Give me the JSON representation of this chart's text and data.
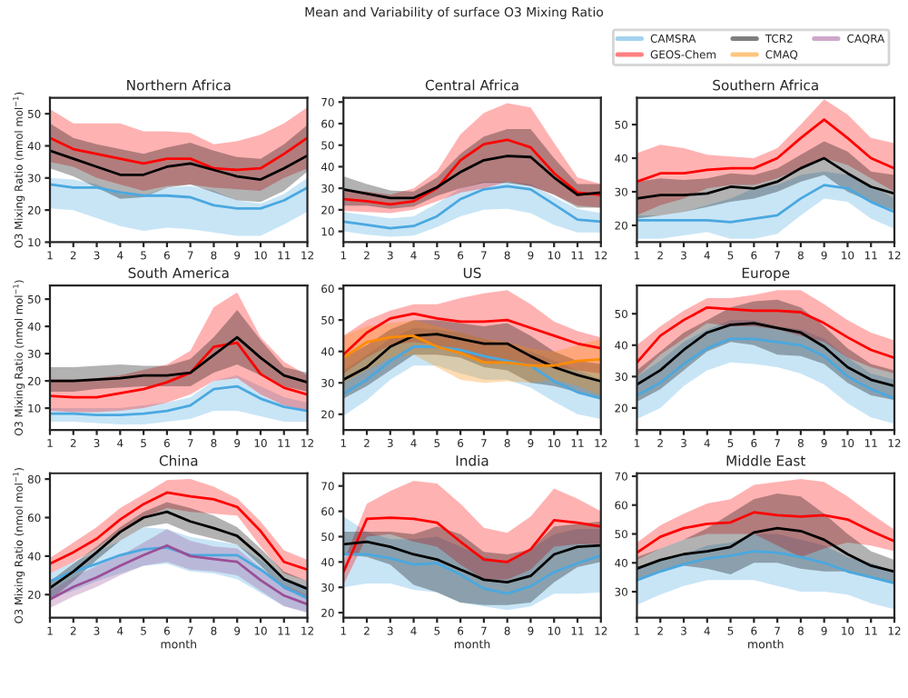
{
  "chart_data": [
    {
      "type": "line",
      "title": "Northern Africa",
      "legend": "top right",
      "ylabel": "O3 Mixing Ratio (nmol mol$^{−1}$)",
      "annotations": [
        "Mean and Variability of surface O3 Mixing Ratio"
      ],
      "x": [
        1,
        2,
        3,
        4,
        5,
        6,
        7,
        8,
        9,
        10,
        11,
        12
      ],
      "xlim": [
        1,
        12
      ],
      "xticks": [
        1,
        2,
        3,
        4,
        5,
        6,
        7,
        8,
        9,
        10,
        11,
        12
      ],
      "ylim": [
        10,
        55
      ],
      "yticks": [
        10,
        20,
        30,
        40,
        50
      ],
      "series": [
        {
          "name": "CAMSRA",
          "color": "#4aa8e0",
          "values": [
            28,
            27,
            27,
            25.5,
            24.5,
            24.5,
            24,
            21.5,
            20.5,
            20.5,
            23,
            27
          ],
          "lower": [
            20.5,
            20,
            17.5,
            15,
            13.5,
            14.5,
            14,
            13,
            12,
            12,
            15.5,
            19.5
          ],
          "upper": [
            30,
            29.5,
            28,
            25,
            24.5,
            27,
            27.5,
            26,
            23,
            22,
            25,
            30
          ]
        },
        {
          "name": "GEOS-Chem",
          "color": "#ff0000",
          "values": [
            42.5,
            39,
            37.5,
            36,
            34.5,
            36,
            36,
            33,
            32.5,
            33,
            37.5,
            42.5
          ],
          "lower": [
            35,
            33.5,
            30,
            28,
            26,
            27.5,
            28,
            27,
            26.5,
            26,
            30,
            33
          ],
          "upper": [
            51.5,
            47,
            47,
            47,
            44.5,
            44.5,
            44,
            40.5,
            41.5,
            43.5,
            47,
            52
          ]
        },
        {
          "name": "TCR2",
          "color": "#000000",
          "values": [
            38.5,
            36,
            33.5,
            31,
            31,
            33.5,
            34.5,
            32.5,
            30.5,
            29.5,
            33,
            37
          ],
          "lower": [
            33,
            30.5,
            27,
            23.5,
            24,
            27,
            28,
            25.5,
            23,
            22.5,
            26,
            32
          ],
          "upper": [
            47,
            42.5,
            40.5,
            39,
            37.5,
            39.5,
            41,
            38.5,
            36.5,
            36,
            40.5,
            46.5
          ]
        }
      ]
    },
    {
      "type": "line",
      "title": "Central Africa",
      "x": [
        1,
        2,
        3,
        4,
        5,
        6,
        7,
        8,
        9,
        10,
        11,
        12
      ],
      "xlim": [
        1,
        12
      ],
      "xticks": [
        1,
        2,
        3,
        4,
        5,
        6,
        7,
        8,
        9,
        10,
        11,
        12
      ],
      "ylim": [
        5,
        72
      ],
      "yticks": [
        10,
        20,
        30,
        40,
        50,
        60,
        70
      ],
      "series": [
        {
          "name": "CAMSRA",
          "color": "#4aa8e0",
          "values": [
            14.5,
            13,
            11.5,
            12.5,
            17,
            25,
            29.5,
            31,
            29.5,
            22.5,
            15.5,
            14.5
          ],
          "lower": [
            10,
            8.5,
            7.5,
            8,
            12,
            17,
            20,
            20.5,
            18.5,
            13,
            9.5,
            9.5
          ],
          "upper": [
            19,
            17.5,
            16,
            17,
            23,
            30,
            33,
            33,
            32,
            26,
            20.5,
            18.5
          ]
        },
        {
          "name": "GEOS-Chem",
          "color": "#ff0000",
          "values": [
            25,
            24,
            22.5,
            24,
            30,
            43,
            50.5,
            52.5,
            49,
            37,
            28,
            27
          ],
          "lower": [
            19.5,
            19,
            18.5,
            20,
            24,
            28,
            30,
            33,
            31,
            27,
            22,
            21
          ],
          "upper": [
            29,
            28.5,
            27,
            30,
            38,
            55,
            65,
            69.5,
            67.5,
            51,
            35,
            32
          ]
        },
        {
          "name": "TCR2",
          "color": "#000000",
          "values": [
            29.5,
            27.5,
            25.5,
            25.5,
            30.5,
            37.5,
            43,
            45,
            44.5,
            35,
            27,
            28
          ],
          "lower": [
            22,
            22,
            20.5,
            21.5,
            26.5,
            30,
            32.5,
            32.5,
            31,
            27,
            21,
            21
          ],
          "upper": [
            35.5,
            32,
            29,
            28.5,
            35,
            46,
            54,
            57.5,
            57.5,
            44,
            32,
            32
          ]
        }
      ]
    },
    {
      "type": "line",
      "title": "Southern Africa",
      "x": [
        1,
        2,
        3,
        4,
        5,
        6,
        7,
        8,
        9,
        10,
        11,
        12
      ],
      "xlim": [
        1,
        12
      ],
      "xticks": [
        1,
        2,
        3,
        4,
        5,
        6,
        7,
        8,
        9,
        10,
        11,
        12
      ],
      "ylim": [
        15,
        58
      ],
      "yticks": [
        20,
        30,
        40,
        50
      ],
      "series": [
        {
          "name": "CAMSRA",
          "color": "#4aa8e0",
          "values": [
            21.5,
            21.5,
            21.5,
            21.5,
            21,
            22,
            23,
            28,
            32,
            31,
            27,
            24
          ],
          "lower": [
            16,
            16,
            17,
            18,
            16,
            16,
            17.5,
            23,
            28,
            27,
            22,
            19
          ],
          "upper": [
            23,
            23,
            24,
            26,
            28,
            31,
            32,
            35,
            36,
            35,
            32,
            28
          ]
        },
        {
          "name": "GEOS-Chem",
          "color": "#ff0000",
          "values": [
            33,
            35.5,
            35.5,
            36.5,
            37,
            37,
            40,
            46,
            51.5,
            46,
            40,
            37
          ],
          "lower": [
            23,
            26,
            28,
            31,
            32,
            32,
            34,
            37,
            40,
            38,
            34,
            30
          ],
          "upper": [
            41.5,
            44,
            43,
            41,
            40.5,
            40,
            43,
            50,
            57.5,
            53,
            46,
            44.5
          ]
        },
        {
          "name": "TCR2",
          "color": "#000000",
          "values": [
            28,
            29,
            29,
            29.5,
            31.5,
            31,
            33,
            37,
            40,
            35.5,
            31.5,
            29.5
          ],
          "lower": [
            22,
            23,
            24,
            25.5,
            27,
            28,
            30,
            33,
            35,
            30,
            27,
            24.5
          ],
          "upper": [
            33,
            34,
            33.5,
            34,
            35.5,
            35,
            37,
            41,
            45,
            42,
            36,
            35
          ]
        }
      ]
    },
    {
      "type": "line",
      "title": "South America",
      "ylabel": "O3 Mixing Ratio (nmol mol$^{−1}$)",
      "x": [
        1,
        2,
        3,
        4,
        5,
        6,
        7,
        8,
        9,
        10,
        11,
        12
      ],
      "xlim": [
        1,
        12
      ],
      "xticks": [
        1,
        2,
        3,
        4,
        5,
        6,
        7,
        8,
        9,
        10,
        11,
        12
      ],
      "ylim": [
        2,
        55
      ],
      "yticks": [
        10,
        20,
        30,
        40,
        50
      ],
      "series": [
        {
          "name": "CAMSRA",
          "color": "#4aa8e0",
          "values": [
            8,
            8,
            7.5,
            7.5,
            8,
            9,
            11,
            17,
            18,
            13.5,
            10.5,
            9
          ],
          "lower": [
            5,
            5,
            4.5,
            4,
            4,
            5,
            6,
            9,
            9,
            7,
            5,
            5
          ],
          "upper": [
            10,
            10,
            10,
            10,
            11,
            12,
            14,
            20,
            22,
            18,
            14,
            12
          ]
        },
        {
          "name": "GEOS-Chem",
          "color": "#ff0000",
          "values": [
            14.5,
            14,
            14,
            15.5,
            17,
            19.5,
            23,
            32.5,
            34,
            22.5,
            17.5,
            15
          ],
          "lower": [
            9,
            8.5,
            8.5,
            9,
            10,
            12,
            15,
            20,
            21,
            15,
            11,
            9
          ],
          "upper": [
            20.5,
            20.5,
            21,
            22,
            24,
            26,
            31,
            47,
            52.5,
            36,
            27,
            22
          ]
        },
        {
          "name": "TCR2",
          "color": "#000000",
          "values": [
            20,
            20,
            20.5,
            21,
            22,
            22,
            23,
            29.5,
            36,
            28.5,
            22,
            19.5
          ],
          "lower": [
            16,
            16,
            17,
            17.5,
            18,
            18,
            18,
            23,
            26,
            22,
            18,
            16
          ],
          "upper": [
            25,
            25,
            25.5,
            26,
            25.5,
            25.5,
            28,
            36,
            46,
            35,
            25,
            23
          ]
        }
      ]
    },
    {
      "type": "line",
      "title": "US",
      "x": [
        1,
        2,
        3,
        4,
        5,
        6,
        7,
        8,
        9,
        10,
        11,
        12
      ],
      "xlim": [
        1,
        12
      ],
      "xticks": [
        1,
        2,
        3,
        4,
        5,
        6,
        7,
        8,
        9,
        10,
        11,
        12
      ],
      "ylim": [
        15,
        61
      ],
      "yticks": [
        20,
        30,
        40,
        50,
        60
      ],
      "series": [
        {
          "name": "CAMSRA",
          "color": "#4aa8e0",
          "values": [
            26.5,
            31,
            37,
            41.5,
            41.5,
            40.5,
            38.5,
            37,
            35.5,
            30.5,
            27,
            25
          ],
          "lower": [
            19.5,
            24.5,
            31,
            35.5,
            35.5,
            33,
            31,
            31,
            28.5,
            24,
            20,
            18.5
          ],
          "upper": [
            34,
            39,
            44,
            47.5,
            47,
            46,
            44,
            42,
            40,
            37,
            34,
            31
          ]
        },
        {
          "name": "GEOS-Chem",
          "color": "#ff0000",
          "values": [
            39,
            46,
            50.5,
            52,
            50.5,
            49.5,
            49.5,
            50,
            47.5,
            45,
            42.5,
            41
          ],
          "lower": [
            33,
            38,
            42,
            43,
            42,
            40,
            37,
            36,
            36,
            35,
            34,
            33
          ],
          "upper": [
            45,
            50,
            53,
            55,
            55,
            57,
            58.5,
            59.5,
            55,
            49.5,
            46.5,
            44.5
          ]
        },
        {
          "name": "TCR2",
          "color": "#000000",
          "values": [
            31,
            35,
            41.5,
            45,
            45.5,
            44,
            42.5,
            42.5,
            38.5,
            35,
            32.5,
            30.5
          ],
          "lower": [
            25,
            29,
            34,
            39,
            39,
            38,
            35,
            34,
            30,
            29,
            27,
            25
          ],
          "upper": [
            38,
            42,
            47,
            50,
            50,
            49,
            48,
            49,
            45,
            40,
            37,
            36
          ]
        },
        {
          "name": "CMAQ",
          "color": "#ff8c00",
          "values": [
            38,
            43,
            44.5,
            45,
            41.5,
            39.5,
            36.5,
            36.5,
            35.5,
            35.5,
            37,
            37.5
          ],
          "lower": [
            30,
            34,
            38,
            39,
            35,
            31,
            30,
            30.5,
            30,
            31,
            29,
            26
          ],
          "upper": [
            45,
            48,
            49,
            50,
            48,
            46,
            44,
            43,
            41,
            40,
            42,
            44
          ]
        }
      ]
    },
    {
      "type": "line",
      "title": "Europe",
      "x": [
        1,
        2,
        3,
        4,
        5,
        6,
        7,
        8,
        9,
        10,
        11,
        12
      ],
      "xlim": [
        1,
        12
      ],
      "xticks": [
        1,
        2,
        3,
        4,
        5,
        6,
        7,
        8,
        9,
        10,
        11,
        12
      ],
      "ylim": [
        13,
        59
      ],
      "yticks": [
        20,
        30,
        40,
        50
      ],
      "series": [
        {
          "name": "CAMSRA",
          "color": "#4aa8e0",
          "values": [
            24,
            28,
            34,
            39,
            42,
            42,
            41,
            40,
            36.5,
            30,
            26,
            23
          ],
          "lower": [
            16.5,
            20,
            27,
            32,
            34.5,
            34,
            33,
            31,
            27.5,
            21.5,
            17,
            15
          ],
          "upper": [
            30,
            35,
            41,
            45,
            48,
            48,
            46,
            45,
            42,
            36,
            31,
            29
          ]
        },
        {
          "name": "GEOS-Chem",
          "color": "#ff0000",
          "values": [
            34.5,
            43,
            48,
            52,
            51.5,
            51,
            51,
            50.5,
            47,
            42.5,
            38.5,
            36
          ],
          "lower": [
            30,
            37,
            42,
            47,
            46,
            46,
            45,
            43,
            41,
            36,
            33,
            31
          ],
          "upper": [
            40,
            46,
            51,
            55,
            55,
            56,
            57.5,
            57.5,
            53,
            48,
            44,
            41.5
          ]
        },
        {
          "name": "TCR2",
          "color": "#000000",
          "values": [
            27.5,
            32,
            38.5,
            44,
            46.5,
            47,
            45.5,
            44,
            39.5,
            33,
            29,
            27
          ],
          "lower": [
            22,
            26,
            32,
            38,
            41,
            40,
            37,
            36.5,
            34,
            28,
            24,
            22.5
          ],
          "upper": [
            32,
            38,
            44,
            48,
            52,
            54,
            54.5,
            52,
            46,
            39,
            34,
            32
          ]
        }
      ]
    },
    {
      "type": "line",
      "title": "China",
      "xlabel": "month",
      "ylabel": "O3 Mixing Ratio (nmol mol$^{−1}$)",
      "x": [
        1,
        2,
        3,
        4,
        5,
        6,
        7,
        8,
        9,
        10,
        11,
        12
      ],
      "xlim": [
        1,
        12
      ],
      "xticks": [
        1,
        2,
        3,
        4,
        5,
        6,
        7,
        8,
        9,
        10,
        11,
        12
      ],
      "ylim": [
        8,
        83
      ],
      "yticks": [
        20,
        40,
        60,
        80
      ],
      "series": [
        {
          "name": "CAMSRA",
          "color": "#4aa8e0",
          "values": [
            27,
            32,
            36,
            40.5,
            43.5,
            44.5,
            40.5,
            40.5,
            40.5,
            33,
            24,
            18
          ],
          "lower": [
            18,
            22,
            27,
            31,
            35,
            36,
            32,
            31,
            28,
            21,
            14,
            11
          ],
          "upper": [
            31,
            37,
            42,
            48,
            55,
            54,
            50,
            48,
            46,
            38,
            29,
            24
          ]
        },
        {
          "name": "GEOS-Chem",
          "color": "#ff0000",
          "values": [
            36,
            42,
            49,
            59,
            67,
            73,
            71,
            69.5,
            65.5,
            53,
            37,
            33
          ],
          "lower": [
            31,
            37,
            44,
            53,
            60,
            65,
            63,
            62,
            61,
            45,
            31,
            27
          ],
          "upper": [
            39,
            47,
            55,
            65,
            72,
            79.5,
            80,
            76,
            70,
            58,
            43,
            38
          ]
        },
        {
          "name": "TCR2",
          "color": "#000000",
          "values": [
            23.5,
            32,
            42,
            52.5,
            60,
            63,
            58,
            54.5,
            50.5,
            40,
            28,
            23
          ],
          "lower": [
            17,
            27,
            38,
            48,
            55,
            57,
            52,
            49,
            46,
            35,
            23,
            18
          ],
          "upper": [
            27,
            36,
            45,
            55,
            63,
            68,
            65,
            61,
            55,
            44,
            32,
            27
          ]
        },
        {
          "name": "CAQRA",
          "color": "#9b4f96",
          "values": [
            17.5,
            24,
            29,
            35,
            40.5,
            45.5,
            40,
            38.5,
            37,
            27.5,
            19.5,
            15
          ],
          "lower": [
            13,
            19,
            24,
            30,
            35,
            37,
            33,
            32,
            30,
            22,
            14,
            10.5
          ],
          "upper": [
            22,
            29,
            35,
            40,
            47,
            54,
            48,
            45,
            44,
            34,
            25,
            20
          ]
        }
      ]
    },
    {
      "type": "line",
      "title": "India",
      "xlabel": "month",
      "x": [
        1,
        2,
        3,
        4,
        5,
        6,
        7,
        8,
        9,
        10,
        11,
        12
      ],
      "xlim": [
        1,
        12
      ],
      "xticks": [
        1,
        2,
        3,
        4,
        5,
        6,
        7,
        8,
        9,
        10,
        11,
        12
      ],
      "ylim": [
        18,
        75
      ],
      "yticks": [
        20,
        30,
        40,
        50,
        60,
        70
      ],
      "series": [
        {
          "name": "CAMSRA",
          "color": "#4aa8e0",
          "values": [
            43,
            43,
            41.5,
            39,
            39.5,
            35,
            29.5,
            27.5,
            30.5,
            36,
            39.5,
            42.5
          ],
          "lower": [
            30,
            31.5,
            31.5,
            29,
            28,
            24,
            22.5,
            21,
            22.5,
            27.5,
            27.5,
            28
          ],
          "upper": [
            58,
            52,
            49,
            49,
            50,
            46,
            42,
            40,
            45,
            51,
            53,
            53
          ]
        },
        {
          "name": "GEOS-Chem",
          "color": "#ff0000",
          "values": [
            36,
            57,
            57.5,
            57,
            55.5,
            48,
            41,
            40,
            45,
            56.5,
            55.5,
            54
          ],
          "lower": [
            31,
            50,
            51,
            48,
            46,
            39,
            33,
            33,
            37,
            46,
            47,
            47
          ],
          "upper": [
            40,
            63,
            68,
            72,
            71,
            63,
            53.5,
            51.5,
            58,
            69,
            65,
            60
          ]
        },
        {
          "name": "TCR2",
          "color": "#000000",
          "values": [
            47,
            48,
            46,
            43,
            41,
            37,
            33,
            32,
            34.5,
            43,
            46,
            46.5
          ],
          "lower": [
            43,
            42,
            39,
            31,
            28,
            24,
            23,
            23,
            24,
            32,
            38,
            40
          ],
          "upper": [
            52,
            52,
            52,
            51,
            54,
            51,
            44,
            43,
            45,
            54,
            55,
            56
          ]
        }
      ]
    },
    {
      "type": "line",
      "title": "Middle East",
      "xlabel": "month",
      "x": [
        1,
        2,
        3,
        4,
        5,
        6,
        7,
        8,
        9,
        10,
        11,
        12
      ],
      "xlim": [
        1,
        12
      ],
      "xticks": [
        1,
        2,
        3,
        4,
        5,
        6,
        7,
        8,
        9,
        10,
        11,
        12
      ],
      "ylim": [
        21,
        71
      ],
      "yticks": [
        30,
        40,
        50,
        60,
        70
      ],
      "series": [
        {
          "name": "CAMSRA",
          "color": "#4aa8e0",
          "values": [
            34,
            37,
            39.5,
            41.5,
            42.5,
            44,
            43.5,
            42,
            40,
            37,
            35,
            33
          ],
          "lower": [
            25.5,
            29,
            32,
            34,
            34,
            34,
            32,
            30,
            30,
            29,
            26,
            24
          ],
          "upper": [
            38,
            41,
            43,
            46,
            47,
            50,
            50,
            48,
            46,
            42,
            40,
            37
          ]
        },
        {
          "name": "GEOS-Chem",
          "color": "#ff0000",
          "values": [
            43.5,
            49,
            52,
            53.5,
            54,
            57.5,
            56.5,
            56,
            56.5,
            55,
            51,
            47.5
          ],
          "lower": [
            41,
            45,
            48,
            50,
            50,
            50,
            46,
            42,
            45,
            47,
            46,
            44
          ],
          "upper": [
            47,
            53,
            57,
            60.5,
            62,
            67,
            68,
            69,
            68,
            63,
            57,
            51.5
          ]
        },
        {
          "name": "TCR2",
          "color": "#000000",
          "values": [
            38,
            41,
            43,
            44,
            45.5,
            50.5,
            52,
            51,
            48,
            43,
            39,
            37
          ],
          "lower": [
            34,
            37,
            39,
            38,
            36,
            40,
            40,
            38,
            37,
            37,
            35,
            33
          ],
          "upper": [
            42,
            45,
            48,
            52,
            57,
            62,
            64,
            63,
            57,
            50,
            44,
            41
          ]
        }
      ]
    }
  ]
}
